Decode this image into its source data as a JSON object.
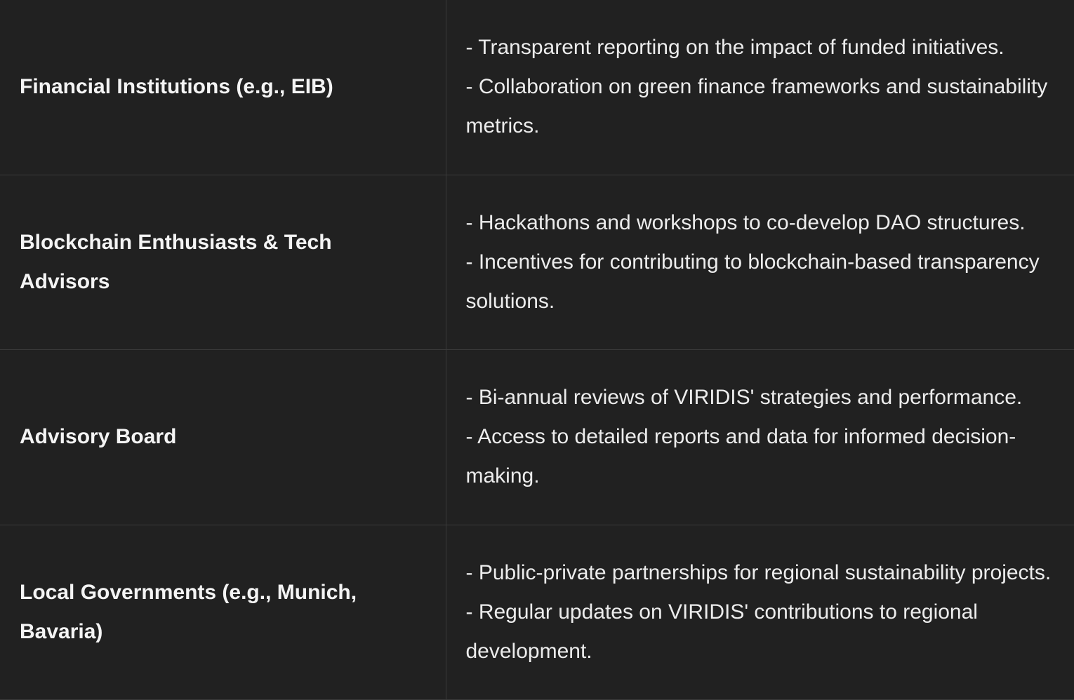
{
  "rows": [
    {
      "stakeholder": "Financial Institutions (e.g., EIB)",
      "points": [
        "- Transparent reporting on the impact of funded initiatives.",
        "- Collaboration on green finance frameworks and sustainability metrics."
      ]
    },
    {
      "stakeholder": "Blockchain Enthusiasts & Tech Advisors",
      "points": [
        "- Hackathons and workshops to co-develop DAO structures.",
        "- Incentives for contributing to blockchain-based transparency solutions."
      ]
    },
    {
      "stakeholder": "Advisory Board",
      "points": [
        "- Bi-annual reviews of VIRIDIS' strategies and performance.",
        "- Access to detailed reports and data for informed decision-making."
      ]
    },
    {
      "stakeholder": "Local Governments (e.g., Munich, Bavaria)",
      "points": [
        "- Public-private partnerships for regional sustainability projects.",
        "- Regular updates on VIRIDIS' contributions to regional development."
      ]
    }
  ],
  "colors": {
    "background": "#212121",
    "border": "#3a3a3a",
    "text": "#ececec"
  }
}
